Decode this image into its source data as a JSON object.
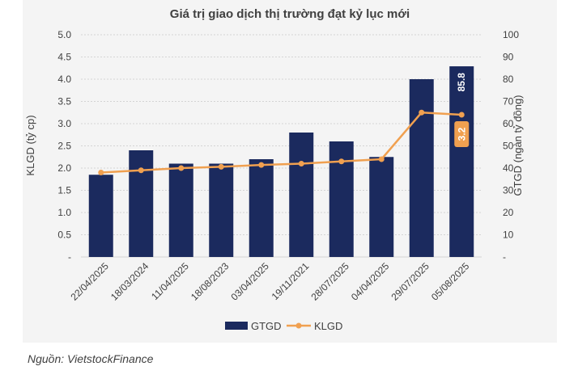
{
  "source": "Nguồn: VietstockFinance",
  "chart_data": {
    "type": "bar",
    "title": "Giá trị giao dịch thị trường đạt kỷ lục mới",
    "categories": [
      "22/04/2025",
      "18/03/2024",
      "11/04/2025",
      "18/08/2023",
      "03/04/2025",
      "19/11/2021",
      "28/07/2025",
      "04/04/2025",
      "29/07/2025",
      "05/08/2025"
    ],
    "series": [
      {
        "name": "GTGD",
        "type": "bar",
        "axis": "right",
        "color": "#1b2a5e",
        "values": [
          37,
          48,
          42,
          42,
          44,
          56,
          52,
          45,
          80,
          85.8
        ]
      },
      {
        "name": "KLGD",
        "type": "line",
        "axis": "left",
        "color": "#f0a050",
        "values": [
          1.9,
          1.95,
          2.0,
          2.03,
          2.07,
          2.1,
          2.15,
          2.2,
          3.25,
          3.2
        ]
      }
    ],
    "ylabel_left": "KLGD (tỷ cp)",
    "ylabel_right": "GTGD (ngàn tỷ đồng)",
    "ylim_left": [
      0,
      5
    ],
    "ylim_right": [
      0,
      100
    ],
    "yticks_left": [
      "-",
      "0.5",
      "1.0",
      "1.5",
      "2.0",
      "2.5",
      "3.0",
      "3.5",
      "4.0",
      "4.5",
      "5.0"
    ],
    "yticks_right": [
      "-",
      "10",
      "20",
      "30",
      "40",
      "50",
      "60",
      "70",
      "80",
      "90",
      "100"
    ],
    "data_labels": [
      {
        "series": "GTGD",
        "index": 9,
        "text": "85.8"
      },
      {
        "series": "KLGD",
        "index": 9,
        "text": "3.2"
      }
    ],
    "grid": true,
    "legend": "bottom"
  }
}
